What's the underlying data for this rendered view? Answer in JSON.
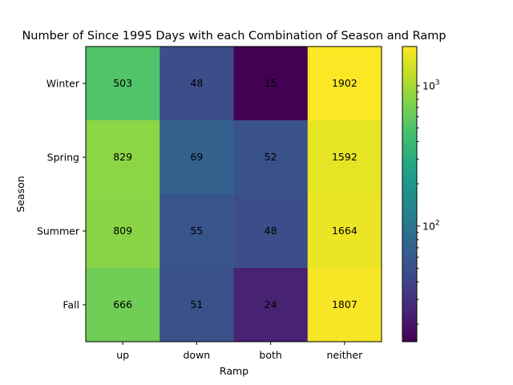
{
  "chart_data": {
    "type": "heatmap",
    "title": "Number of Since 1995 Days with each Combination of Season and Ramp",
    "xlabel": "Ramp",
    "ylabel": "Season",
    "x_categories": [
      "up",
      "down",
      "both",
      "neither"
    ],
    "y_categories": [
      "Winter",
      "Spring",
      "Summer",
      "Fall"
    ],
    "values": [
      [
        503,
        48,
        15,
        1902
      ],
      [
        829,
        69,
        52,
        1592
      ],
      [
        809,
        55,
        48,
        1664
      ],
      [
        666,
        51,
        24,
        1807
      ]
    ],
    "colormap": "viridis",
    "color_scale": "log",
    "color_range": [
      15,
      1902
    ],
    "colorbar_ticks": [
      {
        "value": 100,
        "label": "10",
        "exp": "2"
      },
      {
        "value": 1000,
        "label": "10",
        "exp": "3"
      }
    ]
  }
}
